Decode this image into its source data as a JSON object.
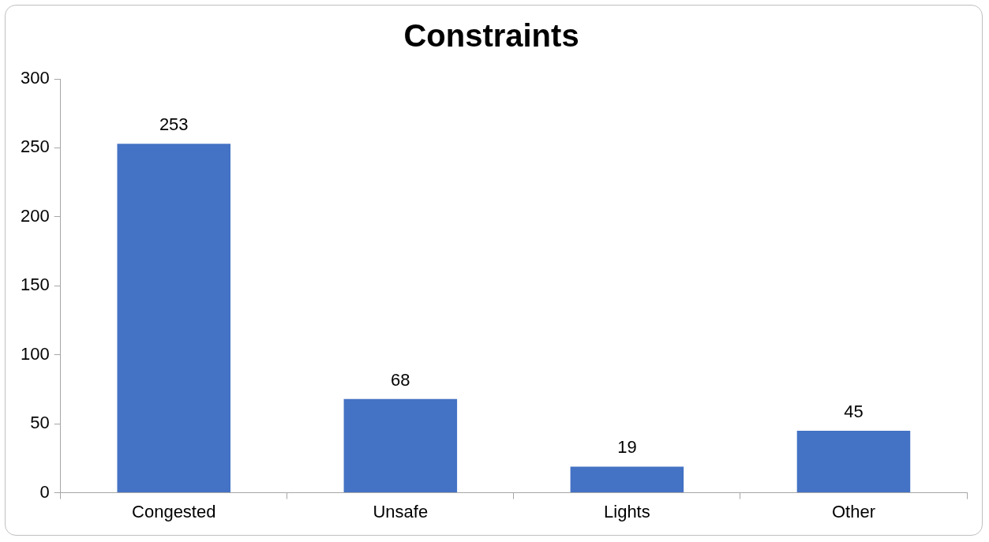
{
  "chart_data": {
    "type": "bar",
    "title": "Constraints",
    "categories": [
      "Congested",
      "Unsafe",
      "Lights",
      "Other"
    ],
    "values": [
      253,
      68,
      19,
      45
    ],
    "color": "#4472c4",
    "ylim": [
      0,
      300
    ],
    "yticks": [
      0,
      50,
      100,
      150,
      200,
      250,
      300
    ],
    "grid": false,
    "legend": false,
    "data_labels": true
  }
}
